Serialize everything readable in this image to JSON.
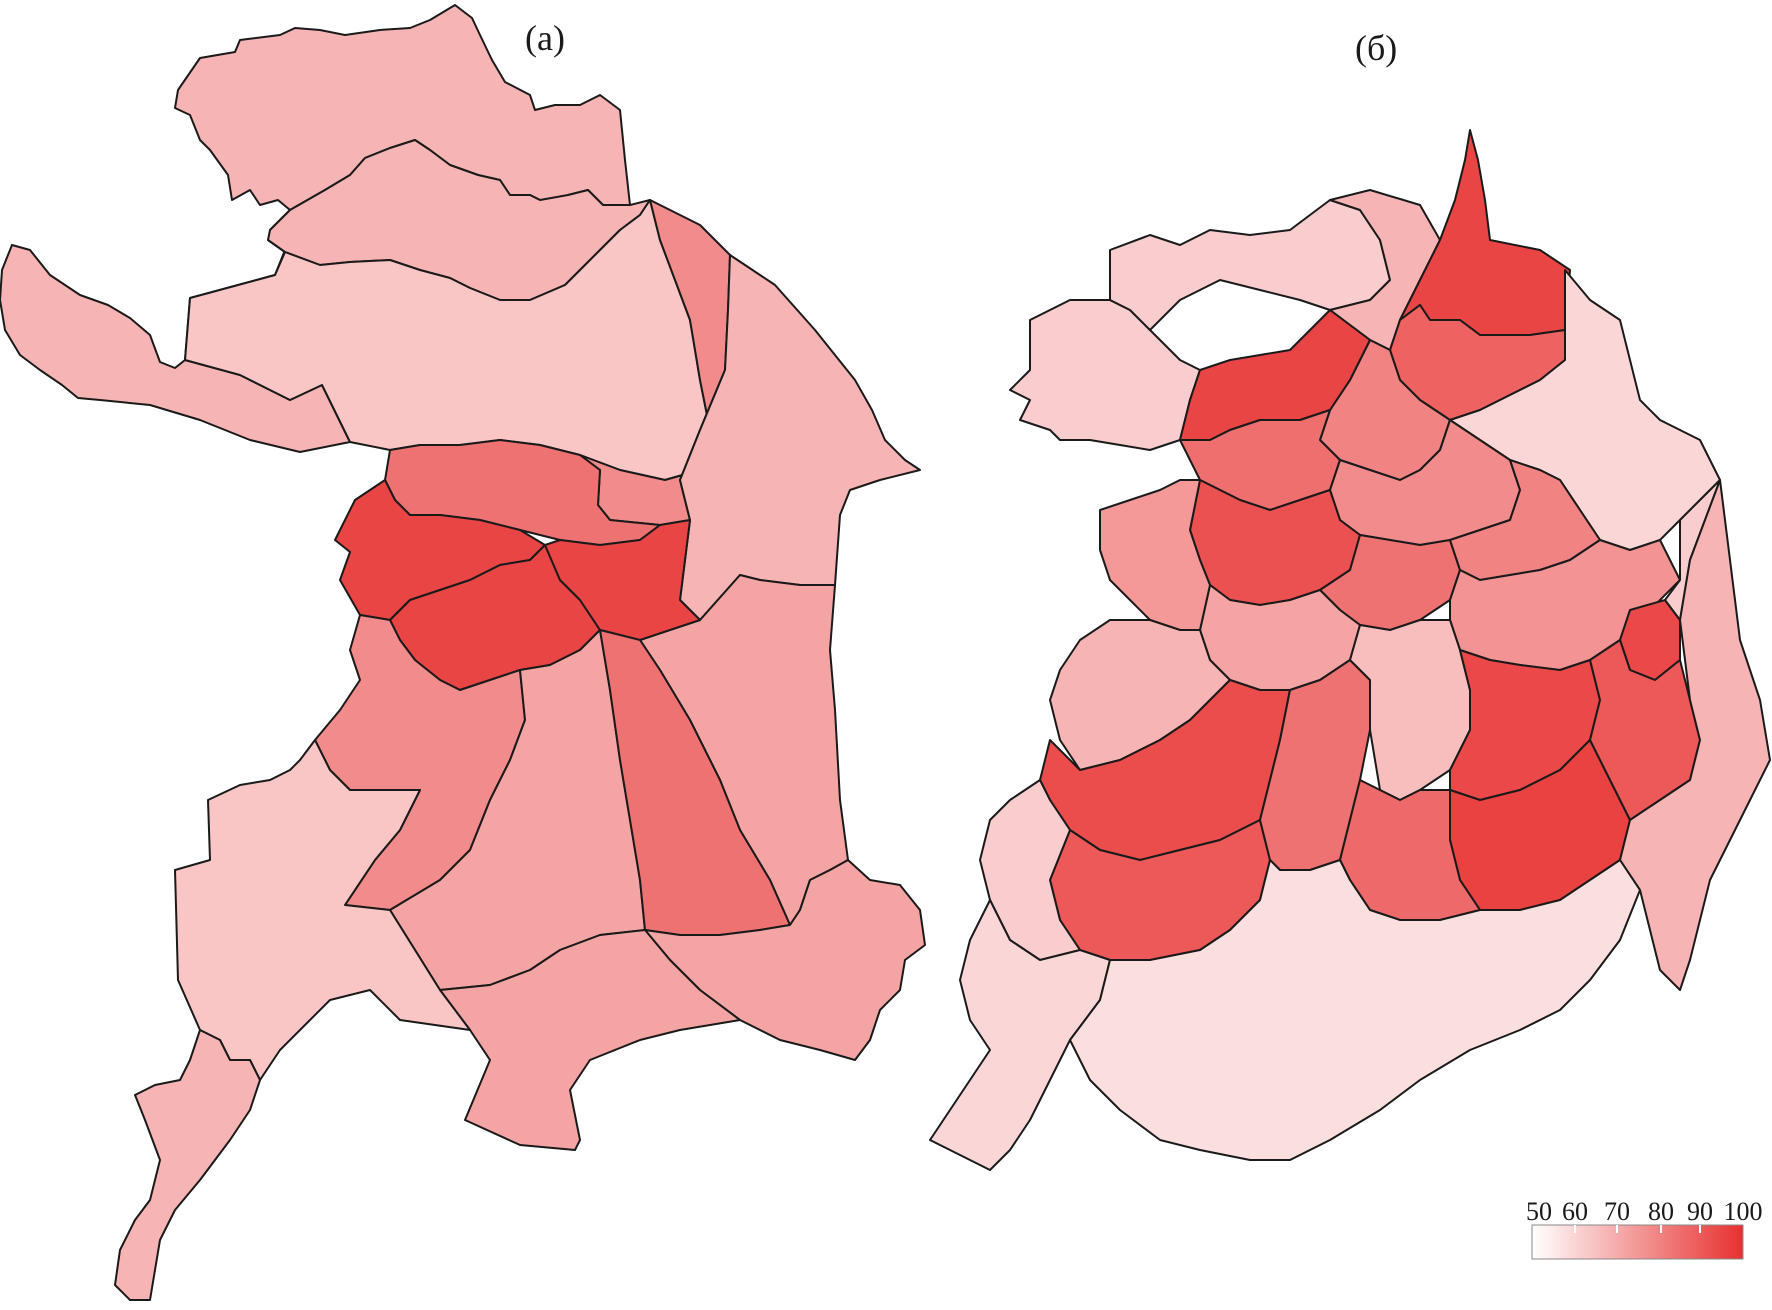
{
  "panels": [
    {
      "label": "(a)",
      "districts": [
        {
          "id": "a-nw",
          "value": 68
        },
        {
          "id": "a-north-outer",
          "value": 68
        },
        {
          "id": "a-north-inner",
          "value": 64
        },
        {
          "id": "a-ne-inner",
          "value": 78
        },
        {
          "id": "a-ne-outer",
          "value": 68
        },
        {
          "id": "a-e-outer",
          "value": 72
        },
        {
          "id": "a-n-center",
          "value": 84
        },
        {
          "id": "a-w-center",
          "value": 95
        },
        {
          "id": "a-c-center",
          "value": 95
        },
        {
          "id": "a-e-center",
          "value": 95
        },
        {
          "id": "a-sw-inner",
          "value": 78
        },
        {
          "id": "a-s-inner",
          "value": 72
        },
        {
          "id": "a-se-inner",
          "value": 84
        },
        {
          "id": "a-se-outer",
          "value": 72
        },
        {
          "id": "a-s-outer",
          "value": 72
        },
        {
          "id": "a-sw-outer",
          "value": 64
        },
        {
          "id": "a-s-tail",
          "value": 68
        }
      ]
    },
    {
      "label": "(б)",
      "districts": [
        {
          "id": "b-nw",
          "value": 62
        },
        {
          "id": "b-n1",
          "value": 62
        },
        {
          "id": "b-n2",
          "value": 68
        },
        {
          "id": "b-n3",
          "value": 95
        },
        {
          "id": "b-n4",
          "value": 88
        },
        {
          "id": "b-n5",
          "value": 80
        },
        {
          "id": "b-n6",
          "value": 95
        },
        {
          "id": "b-ne",
          "value": 60
        },
        {
          "id": "b-c1",
          "value": 85
        },
        {
          "id": "b-c2",
          "value": 78
        },
        {
          "id": "b-c3",
          "value": 92
        },
        {
          "id": "b-c4",
          "value": 84
        },
        {
          "id": "b-c5",
          "value": 72
        },
        {
          "id": "b-e1",
          "value": 80
        },
        {
          "id": "b-e2",
          "value": 76
        },
        {
          "id": "b-e3",
          "value": 94
        },
        {
          "id": "b-e4",
          "value": 62
        },
        {
          "id": "b-w1",
          "value": 75
        },
        {
          "id": "b-w2",
          "value": 68
        },
        {
          "id": "b-sw1",
          "value": 93
        },
        {
          "id": "b-sw2",
          "value": 90
        },
        {
          "id": "b-sw3",
          "value": 84
        },
        {
          "id": "b-s1",
          "value": 66
        },
        {
          "id": "b-s2",
          "value": 94
        },
        {
          "id": "b-s3",
          "value": 96
        },
        {
          "id": "b-s4",
          "value": 86
        },
        {
          "id": "b-s5",
          "value": 90
        },
        {
          "id": "b-se",
          "value": 68
        },
        {
          "id": "b-sw4",
          "value": 62
        },
        {
          "id": "b-sw5",
          "value": 60
        },
        {
          "id": "b-s6",
          "value": 58
        }
      ]
    }
  ],
  "legend": {
    "ticks": [
      "50",
      "60",
      "70",
      "80",
      "90",
      "100"
    ],
    "min": 50,
    "max": 100,
    "color_low": "#ffffff",
    "color_high": "#e83030"
  }
}
